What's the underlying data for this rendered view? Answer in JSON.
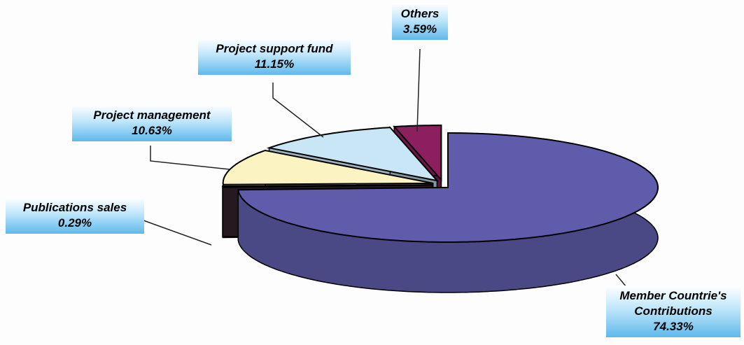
{
  "chart_data": {
    "type": "pie",
    "categories": [
      "Member Countrie's Contributions",
      "Publications sales",
      "Project management",
      "Project support fund",
      "Others"
    ],
    "values": [
      74.33,
      0.29,
      10.63,
      11.15,
      3.59
    ],
    "value_labels": [
      "74.33%",
      "0.29%",
      "10.63%",
      "11.15%",
      "3.59%"
    ],
    "colors": [
      "#5f5cab",
      "#3b2630",
      "#fbf3c2",
      "#c8e6f6",
      "#8c1f5e"
    ]
  }
}
